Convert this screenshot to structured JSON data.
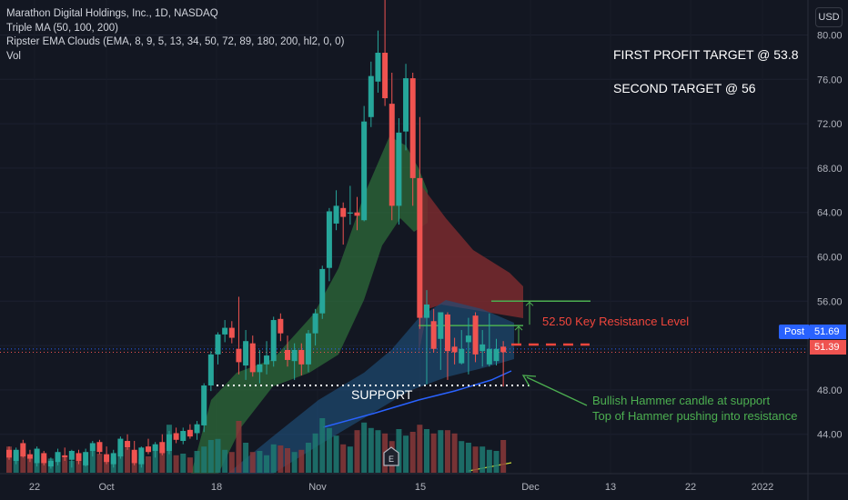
{
  "legend": {
    "title": "Marathon Digital Holdings, Inc., 1D, NASDAQ",
    "ma": "Triple MA (50, 100, 200)",
    "ema": "Ripster EMA Clouds (EMA, 8, 9, 5, 13, 34, 50, 72, 89, 180, 200, hl2, 0, 0)",
    "vol": "Vol"
  },
  "annotations": {
    "first_target": "FIRST PROFIT TARGET @ 53.8",
    "second_target": "SECOND TARGET @ 56",
    "resistance": "52.50 Key Resistance Level",
    "support": "SUPPORT",
    "hammer_line1": "Bullish Hammer candle at support",
    "hammer_line2": "Top of Hammer pushing into resistance"
  },
  "price_scale": {
    "currency": "USD",
    "post_label": "Post",
    "post_price": "51.69",
    "last_price": "51.39"
  },
  "colors": {
    "background": "#131722",
    "up": "#26a69a",
    "down": "#ef5350",
    "resistance": "#f0463c",
    "target_line": "#4caf50",
    "axis_text": "#b2b5be",
    "post_blue": "#2962ff"
  },
  "chart_data": {
    "type": "candlestick",
    "y_ticks": [
      44,
      48,
      52,
      56,
      60,
      64,
      68,
      72,
      76,
      80
    ],
    "y_tick_labels": [
      "44.00",
      "48.00",
      "52.00",
      "56.00",
      "60.00",
      "64.00",
      "68.00",
      "72.00",
      "76.00",
      "80.00"
    ],
    "ylim": [
      40.5,
      82.5
    ],
    "x_tick_labels": [
      "22",
      "Oct",
      "18",
      "Nov",
      "15",
      "Dec",
      "13",
      "22",
      "2022"
    ],
    "resistance_level": 52.5,
    "target_levels": [
      53.8,
      56
    ],
    "support_level": 48.4,
    "candles": [
      {
        "o": 42.6,
        "h": 42.9,
        "l": 41.7,
        "c": 41.9
      },
      {
        "o": 41.6,
        "h": 42.8,
        "l": 41.3,
        "c": 42.6
      },
      {
        "o": 43.2,
        "h": 43.5,
        "l": 41.9,
        "c": 42.0
      },
      {
        "o": 42.2,
        "h": 42.6,
        "l": 41.5,
        "c": 41.8
      },
      {
        "o": 41.4,
        "h": 42.9,
        "l": 41.1,
        "c": 42.7
      },
      {
        "o": 42.3,
        "h": 42.5,
        "l": 41.2,
        "c": 41.4
      },
      {
        "o": 41.1,
        "h": 41.9,
        "l": 40.9,
        "c": 41.6
      },
      {
        "o": 41.5,
        "h": 42.7,
        "l": 41.2,
        "c": 42.4
      },
      {
        "o": 42.1,
        "h": 42.8,
        "l": 41.6,
        "c": 41.9
      },
      {
        "o": 41.7,
        "h": 42.6,
        "l": 41.0,
        "c": 42.5
      },
      {
        "o": 42.3,
        "h": 42.6,
        "l": 41.3,
        "c": 41.6
      },
      {
        "o": 41.2,
        "h": 42.7,
        "l": 41.1,
        "c": 42.4
      },
      {
        "o": 42.5,
        "h": 43.4,
        "l": 42.0,
        "c": 43.2
      },
      {
        "o": 43.3,
        "h": 43.5,
        "l": 42.2,
        "c": 42.4
      },
      {
        "o": 42.2,
        "h": 42.9,
        "l": 41.3,
        "c": 41.5
      },
      {
        "o": 41.3,
        "h": 42.6,
        "l": 41.0,
        "c": 42.3
      },
      {
        "o": 42.0,
        "h": 43.8,
        "l": 41.8,
        "c": 43.6
      },
      {
        "o": 43.4,
        "h": 44.0,
        "l": 42.6,
        "c": 42.8
      },
      {
        "o": 42.6,
        "h": 43.4,
        "l": 41.2,
        "c": 41.4
      },
      {
        "o": 41.3,
        "h": 42.9,
        "l": 41.0,
        "c": 42.8
      },
      {
        "o": 42.9,
        "h": 43.6,
        "l": 42.2,
        "c": 42.4
      },
      {
        "o": 42.5,
        "h": 43.3,
        "l": 41.9,
        "c": 43.1
      },
      {
        "o": 43.3,
        "h": 44.0,
        "l": 42.1,
        "c": 42.3
      },
      {
        "o": 42.5,
        "h": 44.3,
        "l": 42.2,
        "c": 44.0
      },
      {
        "o": 44.1,
        "h": 44.6,
        "l": 43.2,
        "c": 43.5
      },
      {
        "o": 43.4,
        "h": 44.6,
        "l": 43.1,
        "c": 44.3
      },
      {
        "o": 44.4,
        "h": 44.9,
        "l": 43.6,
        "c": 43.8
      },
      {
        "o": 44.1,
        "h": 45.2,
        "l": 43.5,
        "c": 44.9
      },
      {
        "o": 44.8,
        "h": 48.6,
        "l": 44.2,
        "c": 48.4
      },
      {
        "o": 48.4,
        "h": 51.5,
        "l": 47.9,
        "c": 51.2
      },
      {
        "o": 51.2,
        "h": 53.2,
        "l": 50.3,
        "c": 53.0
      },
      {
        "o": 53.0,
        "h": 54.3,
        "l": 52.3,
        "c": 53.6
      },
      {
        "o": 53.6,
        "h": 54.2,
        "l": 52.2,
        "c": 52.7
      },
      {
        "o": 51.7,
        "h": 56.4,
        "l": 49.4,
        "c": 50.5
      },
      {
        "o": 50.2,
        "h": 53.4,
        "l": 48.9,
        "c": 52.4
      },
      {
        "o": 52.2,
        "h": 52.9,
        "l": 49.2,
        "c": 49.6
      },
      {
        "o": 49.6,
        "h": 51.6,
        "l": 48.6,
        "c": 50.3
      },
      {
        "o": 50.3,
        "h": 52.4,
        "l": 49.4,
        "c": 51.1
      },
      {
        "o": 50.6,
        "h": 54.6,
        "l": 50.1,
        "c": 54.3
      },
      {
        "o": 54.4,
        "h": 54.9,
        "l": 52.4,
        "c": 53.1
      },
      {
        "o": 51.6,
        "h": 52.9,
        "l": 50.1,
        "c": 50.7
      },
      {
        "o": 50.6,
        "h": 52.2,
        "l": 48.9,
        "c": 51.6
      },
      {
        "o": 51.6,
        "h": 52.2,
        "l": 49.3,
        "c": 50.3
      },
      {
        "o": 50.3,
        "h": 53.4,
        "l": 49.6,
        "c": 53.1
      },
      {
        "o": 53.1,
        "h": 55.3,
        "l": 52.0,
        "c": 54.9
      },
      {
        "o": 54.9,
        "h": 59.2,
        "l": 54.4,
        "c": 58.9
      },
      {
        "o": 59.0,
        "h": 64.4,
        "l": 57.8,
        "c": 64.1
      },
      {
        "o": 63.0,
        "h": 66.0,
        "l": 62.4,
        "c": 64.6
      },
      {
        "o": 64.4,
        "h": 64.9,
        "l": 61.1,
        "c": 63.6
      },
      {
        "o": 63.9,
        "h": 66.4,
        "l": 62.9,
        "c": 64.0
      },
      {
        "o": 64.0,
        "h": 65.4,
        "l": 62.4,
        "c": 63.7
      },
      {
        "o": 63.3,
        "h": 73.6,
        "l": 63.2,
        "c": 72.2
      },
      {
        "o": 72.6,
        "h": 77.6,
        "l": 71.7,
        "c": 76.3
      },
      {
        "o": 75.8,
        "h": 80.4,
        "l": 74.8,
        "c": 78.4
      },
      {
        "o": 78.4,
        "h": 83.6,
        "l": 73.6,
        "c": 74.3
      },
      {
        "o": 73.8,
        "h": 76.6,
        "l": 63.3,
        "c": 64.6
      },
      {
        "o": 64.6,
        "h": 72.5,
        "l": 62.9,
        "c": 71.2
      },
      {
        "o": 71.3,
        "h": 77.4,
        "l": 69.6,
        "c": 76.1
      },
      {
        "o": 76.1,
        "h": 76.6,
        "l": 64.6,
        "c": 67.1
      },
      {
        "o": 67.1,
        "h": 72.6,
        "l": 53.5,
        "c": 54.5
      },
      {
        "o": 54.5,
        "h": 57.0,
        "l": 48.5,
        "c": 55.7
      },
      {
        "o": 54.2,
        "h": 55.3,
        "l": 51.4,
        "c": 51.7
      },
      {
        "o": 52.6,
        "h": 55.0,
        "l": 49.8,
        "c": 55.0
      },
      {
        "o": 54.8,
        "h": 55.0,
        "l": 48.9,
        "c": 51.5
      },
      {
        "o": 51.9,
        "h": 52.7,
        "l": 50.3,
        "c": 51.4
      },
      {
        "o": 50.4,
        "h": 53.4,
        "l": 50.3,
        "c": 51.7
      },
      {
        "o": 52.3,
        "h": 54.5,
        "l": 49.4,
        "c": 52.9
      },
      {
        "o": 54.7,
        "h": 55.0,
        "l": 50.5,
        "c": 51.2
      },
      {
        "o": 51.5,
        "h": 53.4,
        "l": 50.1,
        "c": 52.1
      },
      {
        "o": 50.3,
        "h": 54.9,
        "l": 50.1,
        "c": 51.7
      },
      {
        "o": 50.6,
        "h": 52.6,
        "l": 50.2,
        "c": 51.7
      },
      {
        "o": 51.9,
        "h": 52.4,
        "l": 48.3,
        "c": 51.4
      }
    ],
    "volume_ratio": [
      0.48,
      0.38,
      0.42,
      0.28,
      0.32,
      0.3,
      0.26,
      0.35,
      0.27,
      0.22,
      0.23,
      0.22,
      0.4,
      0.35,
      0.3,
      0.28,
      0.38,
      0.45,
      0.36,
      0.25,
      0.3,
      0.48,
      0.45,
      0.88,
      0.32,
      0.35,
      0.28,
      0.4,
      0.48,
      0.6,
      0.62,
      0.42,
      0.38,
      0.95,
      0.55,
      0.38,
      0.4,
      0.32,
      0.52,
      0.5,
      0.45,
      0.38,
      0.42,
      0.55,
      0.72,
      1.0,
      0.82,
      0.68,
      0.52,
      0.48,
      0.78,
      0.92,
      0.82,
      0.78,
      0.72,
      0.58,
      0.8,
      0.68,
      0.75,
      0.88,
      0.8,
      0.72,
      0.78,
      0.78,
      0.72,
      0.58,
      0.55,
      0.48,
      0.48,
      0.42,
      0.4,
      0.6
    ]
  }
}
